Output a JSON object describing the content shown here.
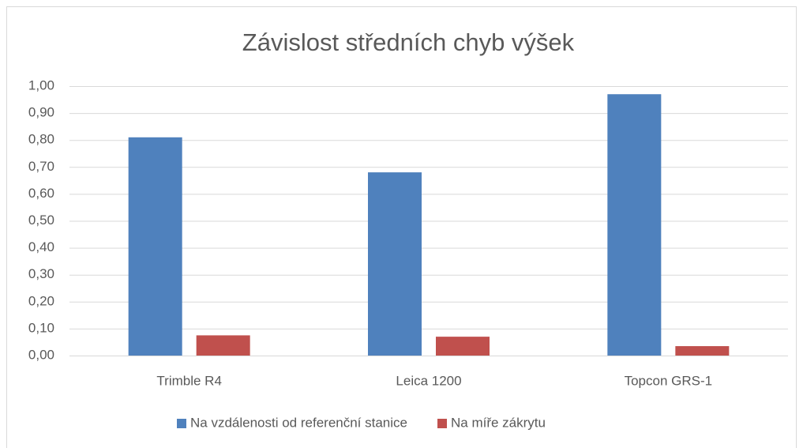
{
  "chart_data": {
    "type": "bar",
    "title": "Závislost středních chyb výšek",
    "categories": [
      "Trimble R4",
      "Leica 1200",
      "Topcon GRS-1"
    ],
    "series": [
      {
        "name": "Na vzdálenosti od referenční stanice",
        "color": "#4f81bd",
        "values": [
          0.81,
          0.68,
          0.97
        ]
      },
      {
        "name": "Na míře zákrytu",
        "color": "#c0504d",
        "values": [
          0.075,
          0.07,
          0.035
        ]
      }
    ],
    "ylim": [
      0,
      1
    ],
    "yticks": [
      {
        "value": 0,
        "label": "0,00"
      },
      {
        "value": 0.1,
        "label": "0,10"
      },
      {
        "value": 0.2,
        "label": "0,20"
      },
      {
        "value": 0.3,
        "label": "0,30"
      },
      {
        "value": 0.4,
        "label": "0,40"
      },
      {
        "value": 0.5,
        "label": "0,50"
      },
      {
        "value": 0.6,
        "label": "0,60"
      },
      {
        "value": 0.7,
        "label": "0,70"
      },
      {
        "value": 0.8,
        "label": "0,80"
      },
      {
        "value": 0.9,
        "label": "0,90"
      },
      {
        "value": 1,
        "label": "1,00"
      }
    ],
    "grid": true,
    "legend": "bottom"
  }
}
